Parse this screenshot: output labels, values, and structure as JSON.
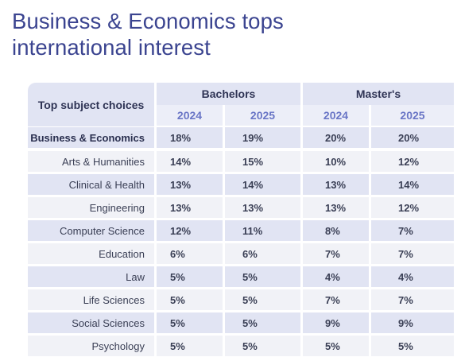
{
  "title": {
    "line1": "Business & Economics tops",
    "line2": "international interest"
  },
  "table": {
    "header_label": "Top subject choices",
    "groups": [
      "Bachelors",
      "Master's"
    ],
    "years": [
      "2024",
      "2025",
      "2024",
      "2025"
    ],
    "rows": [
      {
        "label": "Business & Economics",
        "values": [
          "18%",
          "19%",
          "20%",
          "20%"
        ]
      },
      {
        "label": "Arts & Humanities",
        "values": [
          "14%",
          "15%",
          "10%",
          "12%"
        ]
      },
      {
        "label": "Clinical & Health",
        "values": [
          "13%",
          "14%",
          "13%",
          "14%"
        ]
      },
      {
        "label": "Engineering",
        "values": [
          "13%",
          "13%",
          "13%",
          "12%"
        ]
      },
      {
        "label": "Computer Science",
        "values": [
          "12%",
          "11%",
          "8%",
          "7%"
        ]
      },
      {
        "label": "Education",
        "values": [
          "6%",
          "6%",
          "7%",
          "7%"
        ]
      },
      {
        "label": "Law",
        "values": [
          "5%",
          "5%",
          "4%",
          "4%"
        ]
      },
      {
        "label": "Life Sciences",
        "values": [
          "5%",
          "5%",
          "7%",
          "7%"
        ]
      },
      {
        "label": "Social Sciences",
        "values": [
          "5%",
          "5%",
          "9%",
          "9%"
        ]
      },
      {
        "label": "Psychology",
        "values": [
          "5%",
          "5%",
          "5%",
          "5%"
        ]
      }
    ]
  }
}
